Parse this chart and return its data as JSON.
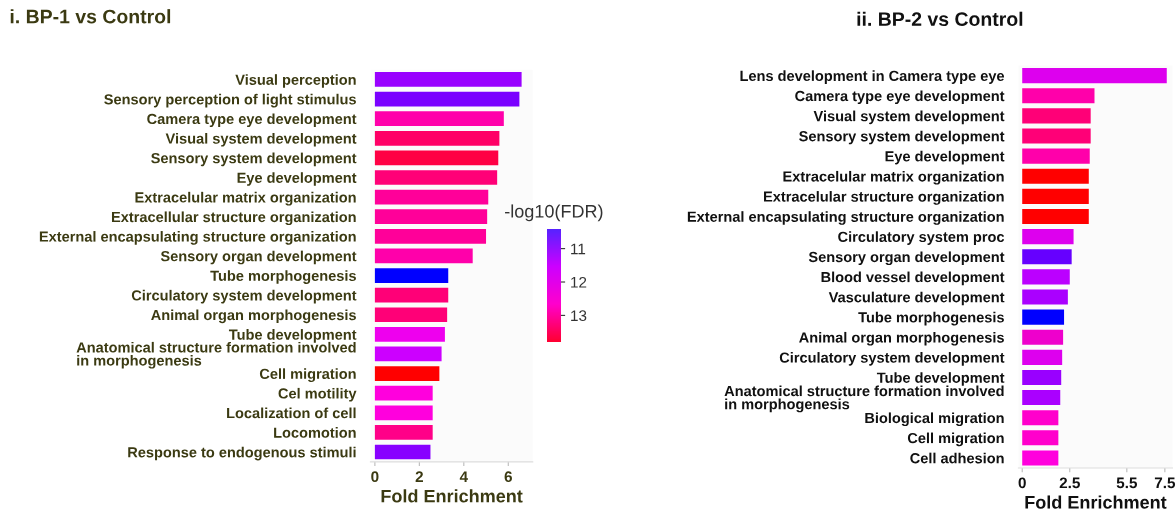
{
  "chart_data": [
    {
      "type": "bar",
      "orientation": "horizontal",
      "title": "i. BP-1 vs Control",
      "xlabel": "Fold Enrichment",
      "clabel": "-log10(FDR)",
      "clim": [
        13.8,
        10.4
      ],
      "cticks": [
        11,
        12,
        13
      ],
      "xlim": [
        -0.2,
        7.1
      ],
      "xticks": [
        0,
        2,
        4,
        6
      ],
      "categories": [
        "Visual perception",
        "Sensory perception of light stimulus",
        "Camera type eye development",
        "Visual system development",
        "Sensory system development",
        "Eye development",
        "Extracelular matrix organization",
        "Extracellular structure organization",
        "External encapsulating structure organization",
        "Sensory organ development",
        "Tube morphogenesis",
        "Circulatory system development",
        "Animal organ morphogenesis",
        "Tube development",
        "Anatomical structure formation involved\nin morphogenesis",
        "Cell migration",
        "Cel motility",
        "Localization of cell",
        "Locomotion",
        "Response to endogenous stimuli"
      ],
      "values": [
        6.6,
        6.5,
        5.8,
        5.6,
        5.55,
        5.5,
        5.1,
        5.05,
        5.0,
        4.4,
        3.3,
        3.3,
        3.25,
        3.15,
        3.0,
        2.9,
        2.6,
        2.6,
        2.6,
        2.5
      ],
      "colors": [
        "#9900ff",
        "#7a00ff",
        "#ff00aa",
        "#ff0066",
        "#ff0044",
        "#ff0077",
        "#ff0099",
        "#ff0099",
        "#ff0099",
        "#ff00aa",
        "#0000ff",
        "#ff0077",
        "#ff0077",
        "#ee00ee",
        "#cc00ff",
        "#ff0000",
        "#ff00dd",
        "#ff00dd",
        "#ff0088",
        "#8800ff"
      ]
    },
    {
      "type": "bar",
      "orientation": "horizontal",
      "title": "ii. BP-2 vs Control",
      "xlabel": "Fold Enrichment",
      "xlim": [
        -0.2,
        7.9
      ],
      "xticks": [
        0,
        2.5,
        5.5,
        7.5
      ],
      "categories": [
        "Lens development in Camera type eye",
        "Camera type eye development",
        "Visual system development",
        "Sensory system development",
        "Eye development",
        "Extracelular matrix organization",
        "Extracelular structure organization",
        "External encapsulating structure organization",
        "Circulatory system proc",
        "Sensory organ development",
        "Blood vessel development",
        "Vasculature development",
        "Tube morphogenesis",
        "Animal organ morphogenesis",
        "Circulatory system development",
        "Tube development",
        "Anatomical structure formation involved\nin morphogenesis",
        "Biological migration",
        "Cell migration",
        "Cell adhesion"
      ],
      "values": [
        7.6,
        3.8,
        3.6,
        3.6,
        3.55,
        3.5,
        3.5,
        3.5,
        2.7,
        2.6,
        2.5,
        2.4,
        2.2,
        2.15,
        2.1,
        2.05,
        2.0,
        1.9,
        1.9,
        1.9
      ],
      "colors": [
        "#dd00ee",
        "#ff00aa",
        "#ff0077",
        "#ff0077",
        "#ff00aa",
        "#ff0000",
        "#ff0000",
        "#ff0000",
        "#dd00ee",
        "#6600ff",
        "#bb00ff",
        "#aa00ff",
        "#0000ff",
        "#ee00cc",
        "#dd00ee",
        "#9900ff",
        "#aa00ff",
        "#ff00cc",
        "#ff00cc",
        "#ff00dd"
      ]
    }
  ]
}
